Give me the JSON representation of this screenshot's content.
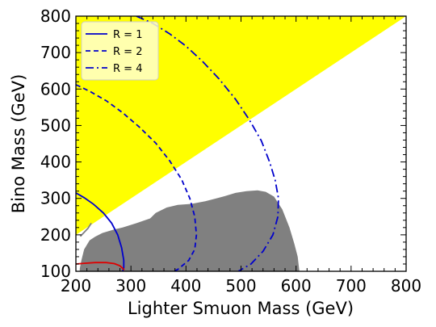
{
  "chart_data": {
    "type": "area",
    "title": "",
    "xlabel": "Lighter Smuon Mass (GeV)",
    "ylabel": "Bino Mass (GeV)",
    "xlim": [
      200,
      800
    ],
    "ylim": [
      100,
      800
    ],
    "xticks": [
      "200",
      "300",
      "400",
      "500",
      "600",
      "700",
      "800"
    ],
    "yticks": [
      "100",
      "200",
      "300",
      "400",
      "500",
      "600",
      "700",
      "800"
    ],
    "grid": false,
    "legend_placement": "top-left",
    "regions": [
      {
        "name": "excluded-yellow",
        "color": "#ffff00",
        "points": [
          [
            200,
            200
          ],
          [
            800,
            800
          ],
          [
            200,
            800
          ]
        ]
      },
      {
        "name": "excluded-gray",
        "color": "#808080",
        "points": [
          [
            207,
            107
          ],
          [
            210,
            130
          ],
          [
            215,
            160
          ],
          [
            225,
            185
          ],
          [
            235,
            195
          ],
          [
            248,
            205
          ],
          [
            270,
            215
          ],
          [
            285,
            220
          ],
          [
            310,
            232
          ],
          [
            335,
            245
          ],
          [
            345,
            260
          ],
          [
            365,
            275
          ],
          [
            385,
            282
          ],
          [
            410,
            285
          ],
          [
            435,
            292
          ],
          [
            455,
            300
          ],
          [
            470,
            306
          ],
          [
            490,
            315
          ],
          [
            510,
            320
          ],
          [
            530,
            322
          ],
          [
            545,
            318
          ],
          [
            560,
            305
          ],
          [
            575,
            270
          ],
          [
            588,
            220
          ],
          [
            597,
            175
          ],
          [
            603,
            140
          ],
          [
            606,
            100
          ],
          [
            207,
            100
          ]
        ]
      }
    ],
    "series": [
      {
        "name": "R = 1",
        "color": "#0000cc",
        "dash": "solid",
        "x": [
          200,
          215,
          232,
          250,
          265,
          276,
          283,
          287,
          287,
          285
        ],
        "y": [
          315,
          302,
          284,
          260,
          232,
          200,
          165,
          130,
          110,
          100
        ]
      },
      {
        "name": "R = 2",
        "color": "#0000cc",
        "dash": "dashed",
        "x": [
          200,
          225,
          255,
          285,
          315,
          345,
          370,
          392,
          407,
          416,
          419,
          416,
          405,
          385,
          378
        ],
        "y": [
          612,
          594,
          568,
          535,
          496,
          452,
          404,
          352,
          300,
          250,
          200,
          160,
          130,
          105,
          100
        ]
      },
      {
        "name": "R = 4",
        "color": "#0000cc",
        "dash": "dashdot",
        "x": [
          310,
          340,
          370,
          400,
          430,
          460,
          490,
          515,
          537,
          552,
          562,
          568,
          567,
          558,
          540,
          518,
          495
        ],
        "y": [
          800,
          780,
          752,
          718,
          676,
          628,
          572,
          516,
          458,
          400,
          350,
          300,
          250,
          200,
          155,
          120,
          100
        ]
      },
      {
        "color": "#dd0000",
        "dash": "solid",
        "x": [
          200,
          215,
          235,
          255,
          270,
          280,
          288
        ],
        "y": [
          120,
          122,
          124,
          124,
          121,
          115,
          104
        ]
      },
      {
        "color": "#808080",
        "dash": "solid",
        "x": [
          208,
          222,
          228
        ],
        "y": [
          196,
          218,
          232
        ]
      }
    ]
  }
}
